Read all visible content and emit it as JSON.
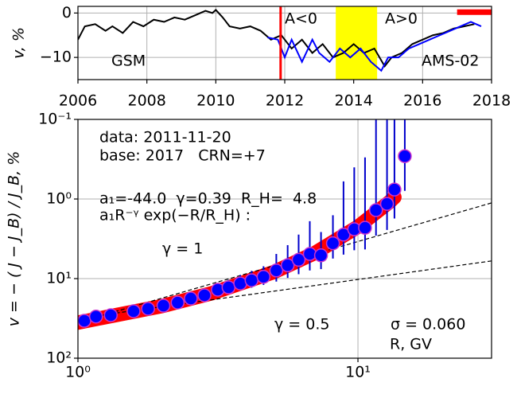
{
  "chart_data": [
    {
      "type": "line",
      "ylabel": "v, %",
      "xlim": [
        2006,
        2018
      ],
      "xticks": [
        2006,
        2008,
        2010,
        2012,
        2014,
        2016,
        2018
      ],
      "ylim": [
        -15,
        1.5
      ],
      "yticks": [
        0,
        {
          "value": -10,
          "label": "−10"
        }
      ],
      "grid": true,
      "series": [
        {
          "name": "GSM",
          "color": "#000000",
          "x": [
            2006.0,
            2006.2,
            2006.5,
            2006.8,
            2007.0,
            2007.3,
            2007.6,
            2007.9,
            2008.2,
            2008.5,
            2008.8,
            2009.1,
            2009.4,
            2009.7,
            2009.9,
            2010.0,
            2010.2,
            2010.4,
            2010.7,
            2011.0,
            2011.3,
            2011.6,
            2011.9,
            2012.2,
            2012.5,
            2012.8,
            2013.1,
            2013.4,
            2013.7,
            2014.0,
            2014.3,
            2014.6,
            2014.9,
            2015.1,
            2015.4,
            2015.7,
            2016.0,
            2016.3,
            2016.6,
            2016.9,
            2017.2,
            2017.5
          ],
          "values": [
            -6,
            -3,
            -2.5,
            -4,
            -3,
            -4.5,
            -2,
            -3,
            -1.5,
            -2,
            -1,
            -1.5,
            -0.5,
            0.5,
            0,
            0.7,
            -1,
            -3,
            -3.5,
            -3,
            -4,
            -6,
            -5,
            -8,
            -6,
            -9,
            -7,
            -10,
            -9,
            -7,
            -9,
            -8,
            -12,
            -10,
            -9,
            -7,
            -6,
            -5,
            -4.5,
            -3.5,
            -3,
            -2.5
          ]
        },
        {
          "name": "AMS-02",
          "color": "#0000ff",
          "x": [
            2011.5,
            2011.8,
            2012.0,
            2012.2,
            2012.5,
            2012.8,
            2013.0,
            2013.3,
            2013.6,
            2013.9,
            2014.2,
            2014.5,
            2014.8,
            2015.0,
            2015.3,
            2015.6,
            2015.9,
            2016.2,
            2016.5,
            2016.8,
            2017.1,
            2017.4,
            2017.7
          ],
          "values": [
            -5.5,
            -6,
            -10,
            -6,
            -11,
            -6,
            -9,
            -11,
            -8,
            -10,
            -8,
            -11,
            -13,
            -10,
            -10,
            -8,
            -7,
            -6,
            -5,
            -4,
            -3,
            -2,
            -3
          ]
        }
      ],
      "event_date": 2011.88,
      "event_color": "#ff0000",
      "span": [
        2013.48,
        2014.68
      ],
      "span_color": "#ffff00",
      "base_period": {
        "x": [
          2017.0,
          2018.0
        ],
        "value": 0.2,
        "color": "#ff0000"
      },
      "annotations": [
        "A<0",
        "A>0"
      ]
    },
    {
      "type": "scatter",
      "xlabel": "R, GV",
      "ylabel": "v = − ( J − J_B) / J_B, %",
      "log_x": true,
      "log_y": true,
      "y_inverted": true,
      "xlim": [
        1,
        30
      ],
      "xticks": [
        {
          "value": 1,
          "label": "10⁰"
        },
        {
          "value": 10,
          "label": "10¹"
        }
      ],
      "ylim": [
        0.1,
        100
      ],
      "yticks": [
        {
          "value": 0.1,
          "label": "10⁻¹"
        },
        {
          "value": 1,
          "label": "10⁰"
        },
        {
          "value": 10,
          "label": "10¹"
        },
        {
          "value": 100,
          "label": "10²"
        }
      ],
      "grid": true,
      "points": {
        "color": "#0000ff",
        "edge_color": "#cc33cc",
        "error_color": "#0000cc",
        "x": [
          1.054,
          1.16,
          1.31,
          1.58,
          1.78,
          2.02,
          2.27,
          2.53,
          2.83,
          3.16,
          3.45,
          3.8,
          4.17,
          4.6,
          5.11,
          5.61,
          6.14,
          6.73,
          7.38,
          8.14,
          8.88,
          9.7,
          10.6,
          11.6,
          12.7,
          13.5,
          14.7
        ],
        "values": [
          33.9,
          30,
          28.8,
          25.7,
          23.9,
          21.9,
          20,
          17.8,
          16.2,
          13.8,
          12.9,
          11.5,
          10.5,
          9.5,
          7.9,
          6.8,
          5.8,
          4.9,
          5.1,
          3.6,
          2.8,
          2.4,
          2.3,
          1.38,
          1.15,
          0.76,
          0.29
        ],
        "errors": [
          4,
          3.5,
          3,
          3,
          3,
          3,
          2.5,
          2.5,
          2.5,
          2.5,
          2.5,
          2.5,
          2.5,
          2.5,
          3,
          3,
          3,
          3,
          2.5,
          2,
          2.2,
          2,
          2,
          1.5,
          1.3,
          1.0,
          0.5
        ]
      },
      "fit": {
        "color": "#ff0000",
        "x": [
          1,
          2,
          3,
          5,
          7,
          10,
          13,
          13.5
        ],
        "values": [
          35.7,
          22.1,
          15.3,
          8.29,
          4.79,
          2.23,
          1.08,
          0.95
        ]
      },
      "reference_lines": [
        {
          "label": "γ = 1",
          "x": [
            1,
            30
          ],
          "values": [
            35.5,
            1.12
          ]
        },
        {
          "label": "γ = 0.5",
          "x": [
            1,
            30
          ],
          "values": [
            31.6,
            6.0
          ]
        }
      ],
      "annotations": [
        "data: 2011-11-20",
        "base: 2017   CRN=+7",
        "a₁=-44.0  γ=0.39  R_H=  4.8",
        "a₁R⁻ᵞ exp(−R/R_H) :",
        "σ = 0.060"
      ]
    }
  ]
}
